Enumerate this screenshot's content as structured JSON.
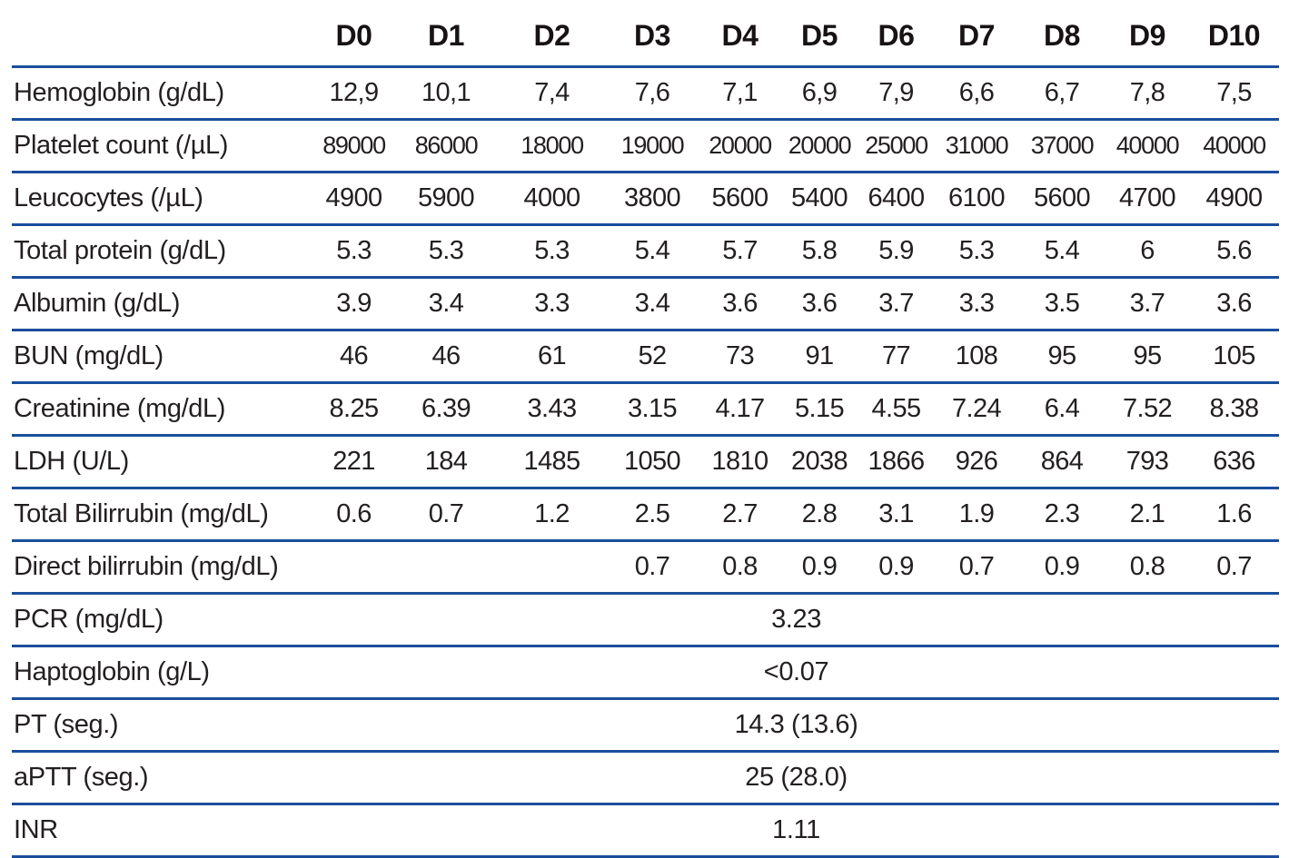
{
  "table": {
    "columns": [
      "",
      "D0",
      "D1",
      "D2",
      "D3",
      "D4",
      "D5",
      "D6",
      "D7",
      "D8",
      "D9",
      "D10"
    ],
    "rows": [
      {
        "label": "Hemoglobin (g/dL)",
        "values": [
          "12,9",
          "10,1",
          "7,4",
          "7,6",
          "7,1",
          "6,9",
          "7,9",
          "6,6",
          "6,7",
          "7,8",
          "7,5"
        ]
      },
      {
        "label": "Platelet count (/µL)",
        "values": [
          "89000",
          "86000",
          "18000",
          "19000",
          "20000",
          "20000",
          "25000",
          "31000",
          "37000",
          "40000",
          "40000"
        ]
      },
      {
        "label": "Leucocytes (/µL)",
        "values": [
          "4900",
          "5900",
          "4000",
          "3800",
          "5600",
          "5400",
          "6400",
          "6100",
          "5600",
          "4700",
          "4900"
        ]
      },
      {
        "label": "Total protein (g/dL)",
        "values": [
          "5.3",
          "5.3",
          "5.3",
          "5.4",
          "5.7",
          "5.8",
          "5.9",
          "5.3",
          "5.4",
          "6",
          "5.6"
        ]
      },
      {
        "label": "Albumin (g/dL)",
        "values": [
          "3.9",
          "3.4",
          "3.3",
          "3.4",
          "3.6",
          "3.6",
          "3.7",
          "3.3",
          "3.5",
          "3.7",
          "3.6"
        ]
      },
      {
        "label": "BUN (mg/dL)",
        "values": [
          "46",
          "46",
          "61",
          "52",
          "73",
          "91",
          "77",
          "108",
          "95",
          "95",
          "105"
        ]
      },
      {
        "label": "Creatinine (mg/dL)",
        "values": [
          "8.25",
          "6.39",
          "3.43",
          "3.15",
          "4.17",
          "5.15",
          "4.55",
          "7.24",
          "6.4",
          "7.52",
          "8.38"
        ]
      },
      {
        "label": "LDH (U/L)",
        "values": [
          "221",
          "184",
          "1485",
          "1050",
          "1810",
          "2038",
          "1866",
          "926",
          "864",
          "793",
          "636"
        ]
      },
      {
        "label": "Total Bilirrubin (mg/dL)",
        "values": [
          "0.6",
          "0.7",
          "1.2",
          "2.5",
          "2.7",
          "2.8",
          "3.1",
          "1.9",
          "2.3",
          "2.1",
          "1.6"
        ]
      },
      {
        "label": "Direct bilirrubin (mg/dL)",
        "values": [
          "",
          "",
          "",
          "0.7",
          "0.8",
          "0.9",
          "0.9",
          "0.7",
          "0.9",
          "0.8",
          "0.7"
        ]
      },
      {
        "label": "PCR (mg/dL)",
        "span_value": "3.23"
      },
      {
        "label": "Haptoglobin (g/L)",
        "span_value": "<0.07"
      },
      {
        "label": "PT (seg.)",
        "span_value": "14.3 (13.6)"
      },
      {
        "label": "aPTT (seg.)",
        "span_value": "25 (28.0)"
      },
      {
        "label": "INR",
        "span_value": "1.11"
      }
    ]
  },
  "colors": {
    "rule_blue": "#1a4e9c",
    "text": "#231f20",
    "header_text": "#171213",
    "background": "#ffffff"
  }
}
